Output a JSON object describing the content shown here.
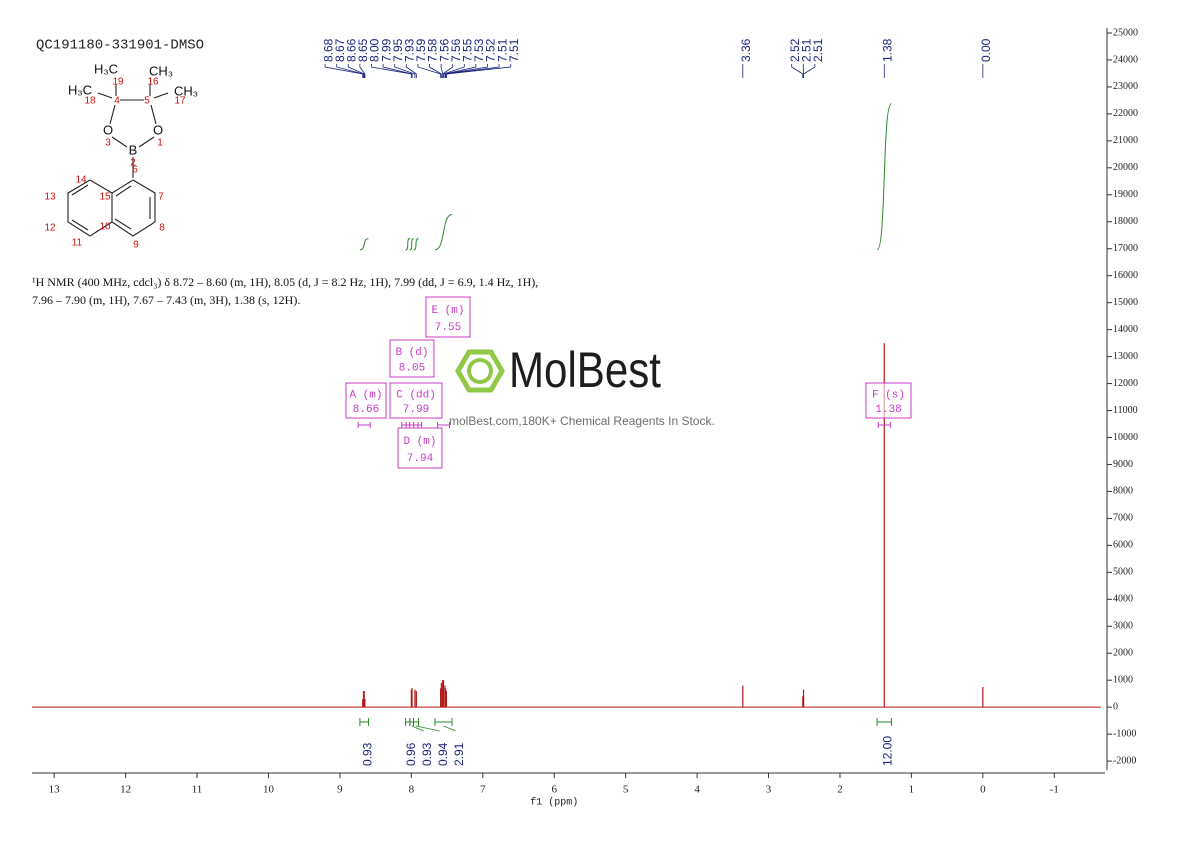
{
  "title": "QC191180-331901-DMSO",
  "molecule": {
    "groups": [
      "H₃C",
      "CH₃",
      "H₃C",
      "CH₃",
      "O",
      "O",
      "B"
    ],
    "numbers": [
      "19",
      "16",
      "18",
      "17",
      "4",
      "5",
      "3",
      "1",
      "2",
      "6",
      "14",
      "7",
      "13",
      "15",
      "12",
      "10",
      "8",
      "11",
      "9"
    ]
  },
  "description": [
    "¹H NMR (400 MHz, cdcl₃) δ 8.72 – 8.60 (m, 1H), 8.05 (d, J = 8.2 Hz, 1H), 7.99 (dd, J = 6.9, 1.4 Hz, 1H),",
    "7.96 – 7.90 (m, 1H), 7.67 – 7.43 (m, 3H), 1.38 (s, 12H)."
  ],
  "watermark": {
    "brand": "MolBest",
    "slogan": "molBest.com,180K+ Chemical Reagents In Stock."
  },
  "chart_data": {
    "type": "nmr",
    "xlabel": "f1 (ppm)",
    "xlim": [
      13.31,
      -1.71
    ],
    "xticks": [
      13,
      12,
      11,
      10,
      9,
      8,
      7,
      6,
      5,
      4,
      3,
      2,
      1,
      0,
      -1
    ],
    "ylim": [
      -2330,
      25185
    ],
    "yticks": [
      25000,
      24000,
      23000,
      22000,
      21000,
      20000,
      19000,
      18000,
      17000,
      16000,
      15000,
      14000,
      13000,
      12000,
      11000,
      10000,
      9000,
      8000,
      7000,
      6000,
      5000,
      4000,
      3000,
      2000,
      1000,
      0,
      -1000,
      -2000
    ],
    "color": "#b01818",
    "peaks": {
      "x": [
        8.68,
        8.67,
        8.66,
        8.65,
        {
          "value": 8,
          "label": "8.00"
        },
        7.99,
        7.95,
        7.93,
        7.59,
        7.58,
        7.56,
        7.56,
        7.55,
        7.53,
        7.52,
        7.51,
        7.51,
        3.36,
        2.52,
        2.51,
        2.51,
        1.38,
        {
          "value": 0,
          "label": "0.00"
        }
      ],
      "values": [
        300,
        600,
        600,
        300,
        650,
        700,
        650,
        600,
        700,
        900,
        1000,
        1000,
        1000,
        800,
        700,
        600,
        500,
        800,
        400,
        650,
        400,
        13500,
        750
      ]
    },
    "integrals": [
      {
        "range": [
          8.72,
          8.6
        ],
        "value": 0.93
      },
      {
        "range": [
          8.08,
          8.02
        ],
        "value": 0.96
      },
      {
        "range": [
          8.02,
          7.97
        ],
        "value": 0.93
      },
      {
        "range": [
          7.97,
          7.9
        ],
        "value": 0.94
      },
      {
        "range": [
          7.67,
          7.43
        ],
        "value": 2.91
      },
      {
        "range": [
          1.48,
          1.28
        ],
        "value": {
          "value": 12,
          "label": "12.00"
        }
      }
    ],
    "multiplets": [
      {
        "name": "A (m)",
        "shift": 8.66
      },
      {
        "name": "B (d)",
        "shift": 8.05
      },
      {
        "name": "C (dd)",
        "shift": 7.99
      },
      {
        "name": "D (m)",
        "shift": 7.94
      },
      {
        "name": "E (m)",
        "shift": 7.55
      },
      {
        "name": "F (s)",
        "shift": 1.38
      }
    ]
  }
}
